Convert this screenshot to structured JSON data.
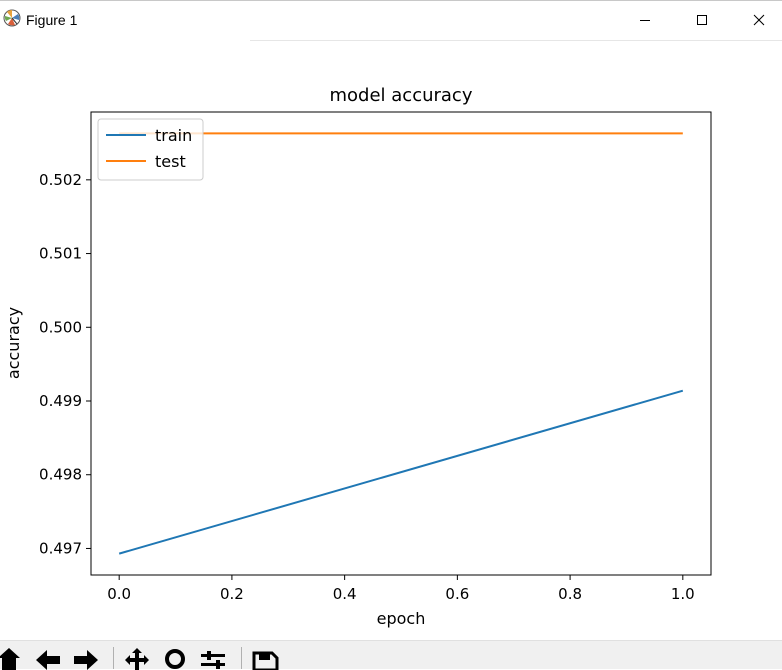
{
  "window": {
    "title": "Figure 1",
    "controls": [
      "minimize",
      "maximize",
      "close"
    ]
  },
  "chart_data": {
    "type": "line",
    "title": "model accuracy",
    "xlabel": "epoch",
    "ylabel": "accuracy",
    "x": [
      0.0,
      1.0
    ],
    "series": [
      {
        "name": "train",
        "color": "#1f77b4",
        "values": [
          0.49693,
          0.49914
        ]
      },
      {
        "name": "test",
        "color": "#ff7f0e",
        "values": [
          0.50263,
          0.50263
        ]
      }
    ],
    "xlim": [
      -0.05,
      1.05
    ],
    "ylim": [
      0.49664,
      0.50292
    ],
    "xticks": [
      0.0,
      0.2,
      0.4,
      0.6,
      0.8,
      1.0
    ],
    "xtick_labels": [
      "0.0",
      "0.2",
      "0.4",
      "0.6",
      "0.8",
      "1.0"
    ],
    "yticks": [
      0.497,
      0.498,
      0.499,
      0.5,
      0.501,
      0.502
    ],
    "ytick_labels": [
      "0.497",
      "0.498",
      "0.499",
      "0.500",
      "0.501",
      "0.502"
    ],
    "grid": false,
    "legend_position": "upper left"
  },
  "toolbar": {
    "buttons": [
      "home-icon",
      "back-icon",
      "forward-icon",
      "pan-icon",
      "zoom-icon",
      "configure-subplots-icon",
      "save-icon"
    ]
  }
}
